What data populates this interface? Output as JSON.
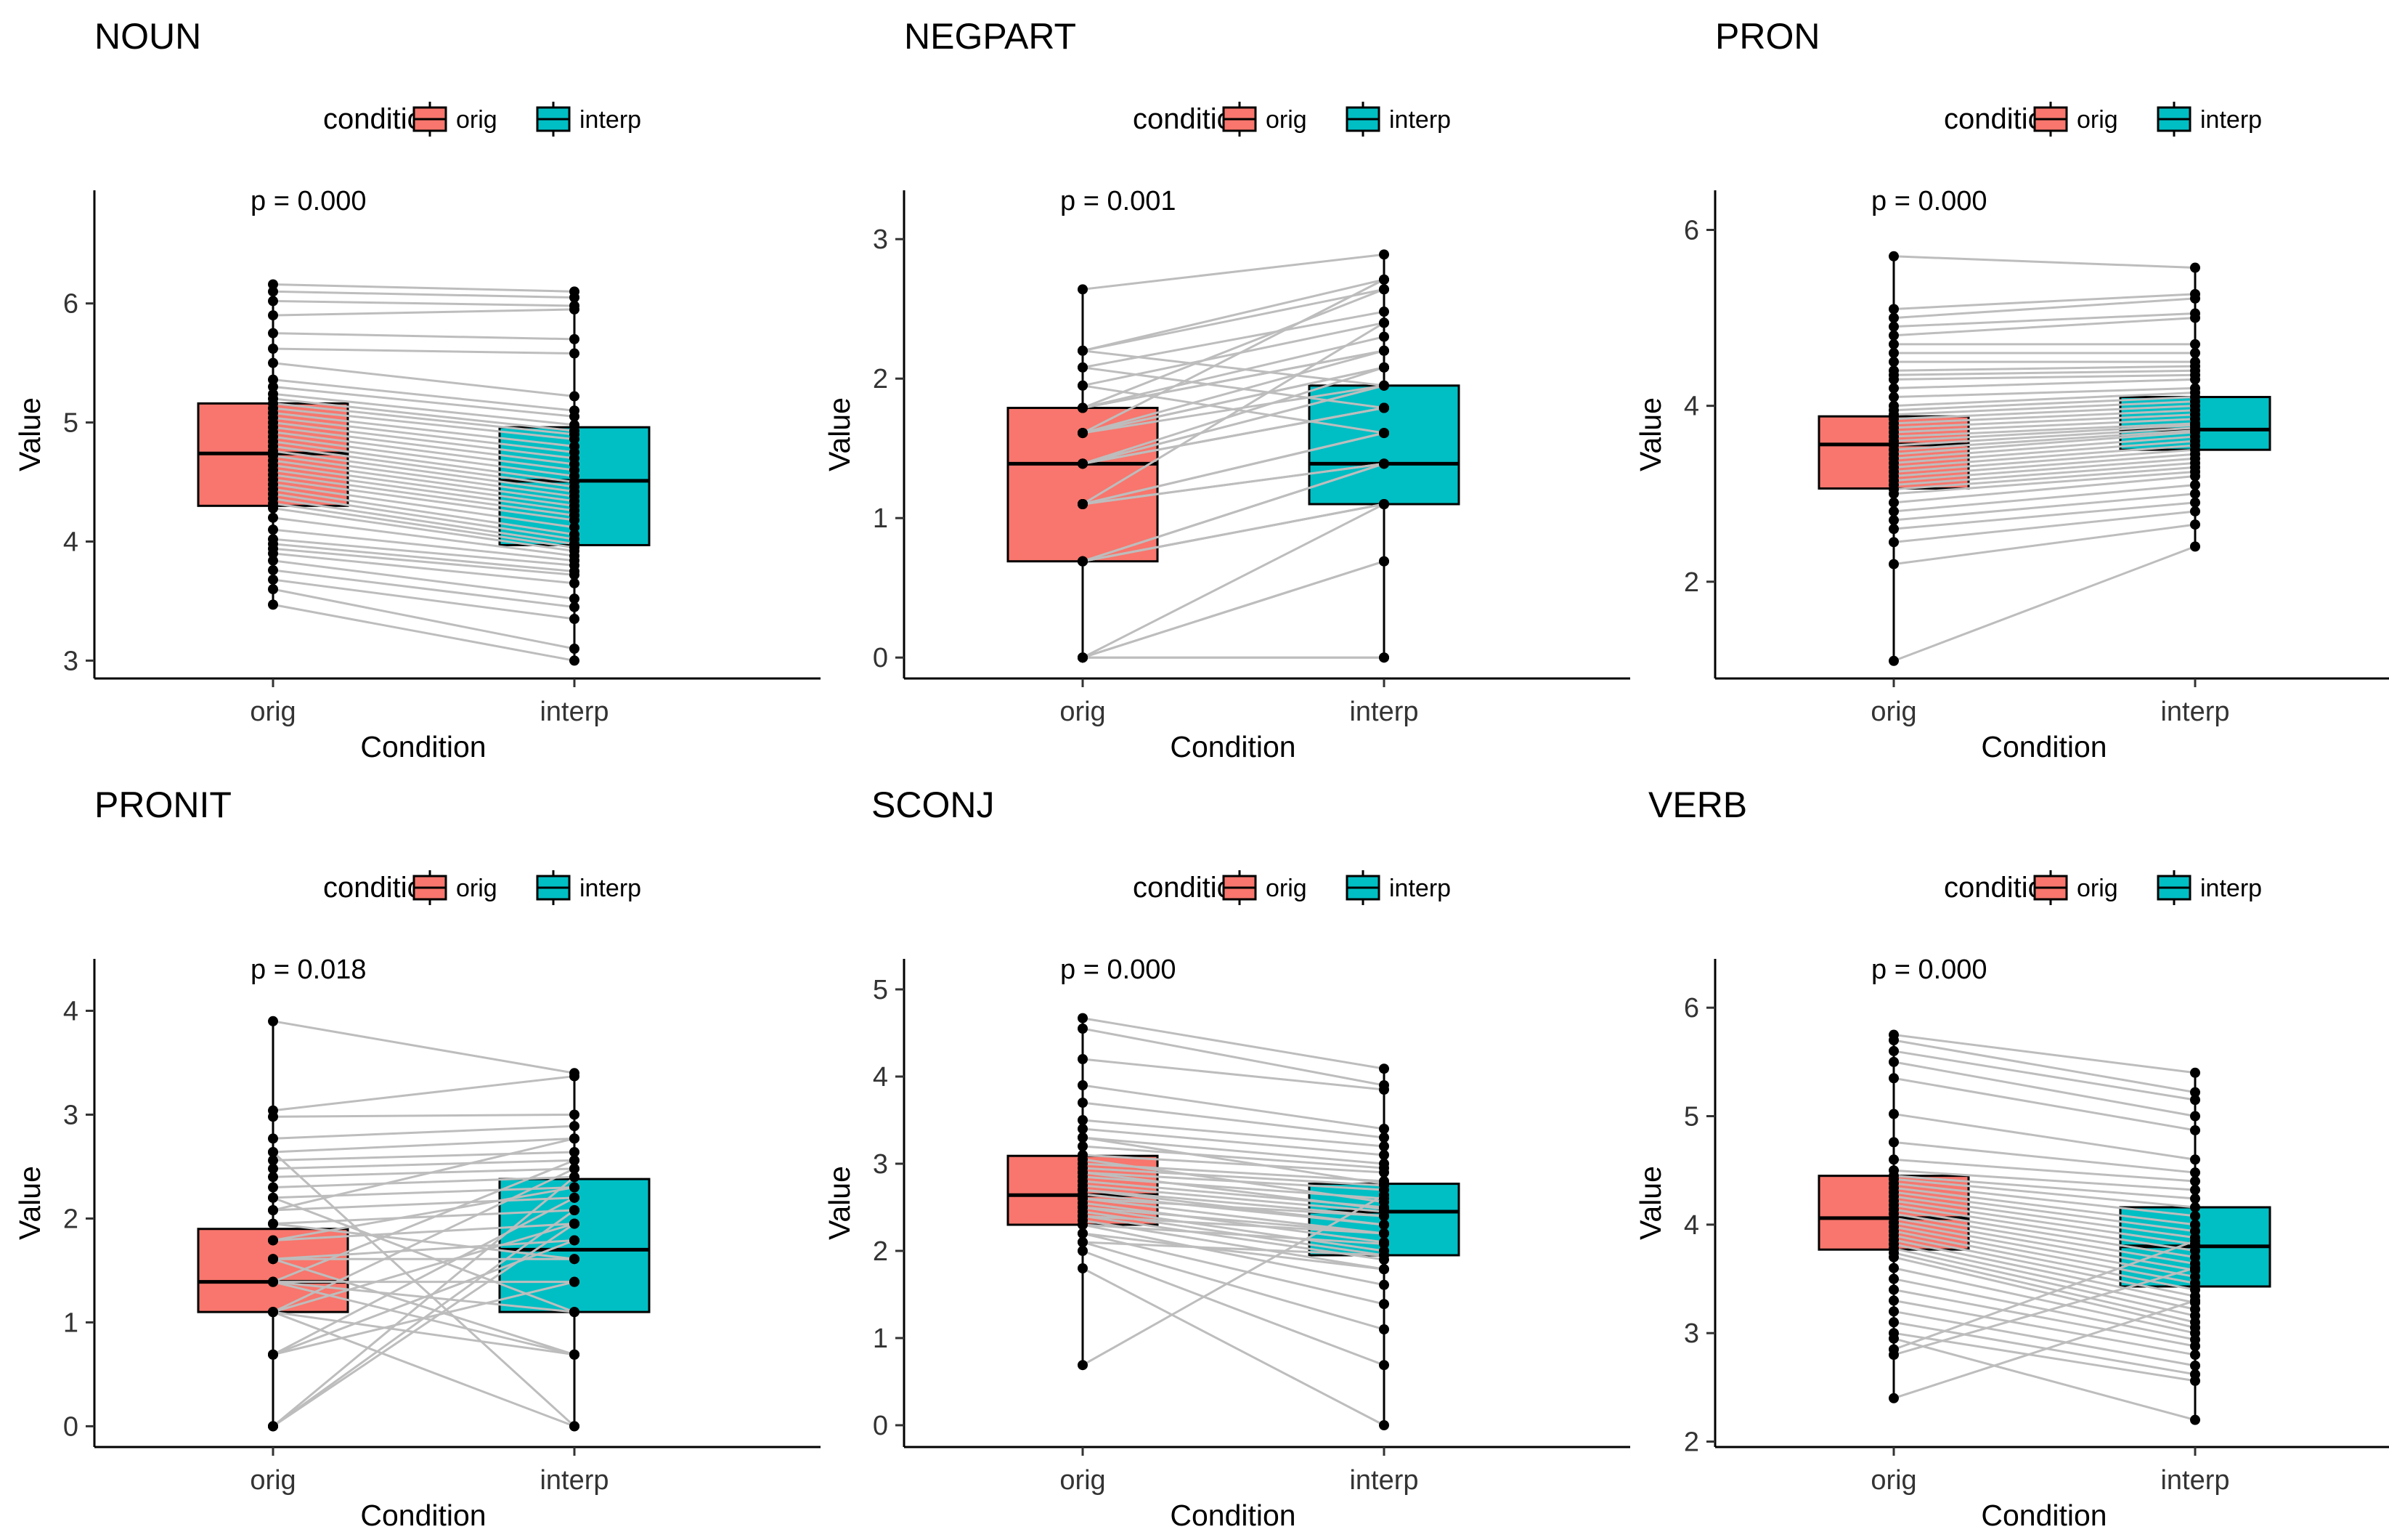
{
  "chart_data": [
    {
      "type": "box",
      "title": "NOUN",
      "xlabel": "Condition",
      "ylabel": "Value",
      "categories": [
        "orig",
        "interp"
      ],
      "legend": {
        "title": "condition",
        "entries": [
          "orig",
          "interp"
        ]
      },
      "annotation": "p = 0.000",
      "ylim": [
        2.85,
        6.95
      ],
      "yticks": [
        3,
        4,
        5,
        6
      ],
      "boxes": [
        {
          "condition": "orig",
          "q1": 4.3,
          "median": 4.74,
          "q3": 5.16,
          "min": 3.47,
          "max": 6.16
        },
        {
          "condition": "interp",
          "q1": 3.97,
          "median": 4.51,
          "q3": 4.96,
          "min": 3.0,
          "max": 6.1
        }
      ],
      "points": {
        "orig": [
          6.16,
          6.1,
          6.02,
          5.9,
          5.75,
          5.62,
          5.5,
          5.36,
          5.3,
          5.24,
          5.2,
          5.16,
          5.12,
          5.08,
          5.04,
          5.0,
          4.96,
          4.92,
          4.88,
          4.84,
          4.8,
          4.76,
          4.72,
          4.68,
          4.64,
          4.6,
          4.56,
          4.52,
          4.48,
          4.44,
          4.4,
          4.36,
          4.32,
          4.28,
          4.2,
          4.1,
          4.02,
          3.98,
          3.94,
          3.9,
          3.84,
          3.76,
          3.68,
          3.6,
          3.47
        ],
        "interp": [
          6.1,
          6.05,
          5.98,
          5.95,
          5.7,
          5.58,
          5.22,
          5.1,
          5.05,
          4.98,
          4.93,
          4.9,
          4.86,
          4.8,
          4.75,
          4.7,
          4.65,
          4.6,
          4.55,
          4.5,
          4.46,
          4.42,
          4.38,
          4.34,
          4.3,
          4.26,
          4.22,
          4.18,
          4.12,
          4.06,
          4.02,
          3.98,
          3.95,
          3.92,
          3.88,
          3.84,
          3.8,
          3.75,
          3.72,
          3.65,
          3.52,
          3.45,
          3.35,
          3.1,
          3.0
        ]
      }
    },
    {
      "type": "box",
      "title": "NEGPART",
      "xlabel": "Condition",
      "ylabel": "Value",
      "categories": [
        "orig",
        "interp"
      ],
      "legend": {
        "title": "condition",
        "entries": [
          "orig",
          "interp"
        ]
      },
      "annotation": "p = 0.001",
      "ylim": [
        -0.15,
        3.35
      ],
      "yticks": [
        0,
        1,
        2,
        3
      ],
      "boxes": [
        {
          "condition": "orig",
          "q1": 0.69,
          "median": 1.39,
          "q3": 1.79,
          "min": 0.0,
          "max": 2.64
        },
        {
          "condition": "interp",
          "q1": 1.1,
          "median": 1.39,
          "q3": 1.95,
          "min": 0.0,
          "max": 2.89
        }
      ],
      "points": {
        "orig": [
          2.64,
          2.2,
          2.2,
          2.08,
          1.95,
          1.79,
          1.79,
          1.61,
          1.61,
          1.61,
          1.39,
          1.39,
          1.39,
          1.39,
          1.39,
          1.1,
          1.1,
          1.1,
          1.1,
          1.1,
          0.69,
          0.69,
          0.69,
          0.69,
          0.69,
          0.0,
          0.0,
          0.0,
          0.0,
          0.0,
          1.61,
          1.79,
          1.95,
          2.08,
          1.1,
          0.69,
          1.39,
          1.61,
          2.2,
          1.79
        ],
        "interp": [
          2.89,
          2.71,
          2.64,
          2.48,
          2.4,
          2.3,
          2.2,
          2.2,
          2.08,
          2.08,
          1.95,
          1.95,
          1.79,
          1.79,
          1.79,
          1.61,
          1.61,
          1.61,
          1.39,
          1.39,
          1.39,
          1.39,
          1.1,
          1.1,
          1.1,
          1.1,
          0.69,
          0.69,
          0.0,
          0.0,
          1.95,
          2.2,
          1.61,
          1.79,
          2.4,
          1.39,
          2.08,
          2.71,
          1.95,
          2.64
        ]
      }
    },
    {
      "type": "box",
      "title": "PRON",
      "xlabel": "Condition",
      "ylabel": "Value",
      "categories": [
        "orig",
        "interp"
      ],
      "legend": {
        "title": "condition",
        "entries": [
          "orig",
          "interp"
        ]
      },
      "annotation": "p = 0.000",
      "ylim": [
        0.9,
        6.45
      ],
      "yticks": [
        2,
        4,
        6
      ],
      "boxes": [
        {
          "condition": "orig",
          "q1": 3.06,
          "median": 3.56,
          "q3": 3.88,
          "min": 1.1,
          "max": 5.7
        },
        {
          "condition": "interp",
          "q1": 3.5,
          "median": 3.73,
          "q3": 4.1,
          "min": 2.4,
          "max": 5.57
        }
      ],
      "points": {
        "orig": [
          5.7,
          5.1,
          5.0,
          4.9,
          4.8,
          4.7,
          4.6,
          4.5,
          4.4,
          4.35,
          4.3,
          4.2,
          4.1,
          4.0,
          3.95,
          3.9,
          3.85,
          3.8,
          3.75,
          3.7,
          3.65,
          3.6,
          3.55,
          3.5,
          3.45,
          3.4,
          3.35,
          3.3,
          3.25,
          3.2,
          3.15,
          3.1,
          3.05,
          3.0,
          2.9,
          2.8,
          2.7,
          2.6,
          2.45,
          2.2,
          1.1
        ],
        "interp": [
          5.57,
          5.27,
          5.22,
          5.05,
          5.0,
          4.7,
          4.6,
          4.5,
          4.45,
          4.4,
          4.35,
          4.3,
          4.2,
          4.15,
          4.1,
          4.05,
          4.0,
          3.95,
          3.9,
          3.85,
          3.8,
          3.78,
          3.75,
          3.72,
          3.7,
          3.65,
          3.6,
          3.55,
          3.5,
          3.45,
          3.4,
          3.35,
          3.3,
          3.25,
          3.2,
          3.1,
          3.0,
          2.9,
          2.8,
          2.65,
          2.4
        ]
      }
    },
    {
      "type": "box",
      "title": "PRONIT",
      "xlabel": "Condition",
      "ylabel": "Value",
      "categories": [
        "orig",
        "interp"
      ],
      "legend": {
        "title": "condition",
        "entries": [
          "orig",
          "interp"
        ]
      },
      "annotation": "p = 0.018",
      "ylim": [
        -0.2,
        4.5
      ],
      "yticks": [
        0,
        1,
        2,
        3,
        4
      ],
      "boxes": [
        {
          "condition": "orig",
          "q1": 1.1,
          "median": 1.39,
          "q3": 1.9,
          "min": 0.0,
          "max": 3.9
        },
        {
          "condition": "interp",
          "q1": 1.1,
          "median": 1.7,
          "q3": 2.38,
          "min": 0.0,
          "max": 3.4
        }
      ],
      "points": {
        "orig": [
          3.9,
          3.04,
          2.98,
          2.77,
          2.64,
          2.56,
          2.48,
          2.4,
          2.3,
          2.2,
          2.08,
          1.95,
          1.79,
          1.61,
          1.61,
          1.39,
          1.39,
          1.39,
          1.1,
          1.1,
          1.1,
          0.69,
          0.69,
          0.0,
          0.0,
          1.79,
          1.95,
          2.2,
          1.39,
          1.1,
          0.69,
          2.64,
          1.61,
          2.08,
          0.0
        ],
        "interp": [
          3.4,
          3.37,
          3.0,
          2.89,
          2.77,
          2.64,
          2.56,
          2.48,
          2.4,
          2.3,
          2.2,
          2.08,
          1.95,
          1.79,
          1.61,
          1.39,
          1.1,
          0.69,
          0.69,
          0.0,
          1.95,
          2.2,
          1.79,
          2.08,
          2.4,
          2.3,
          1.61,
          1.1,
          2.56,
          2.48,
          1.39,
          0.0,
          0.69,
          2.77,
          1.95
        ]
      }
    },
    {
      "type": "box",
      "title": "SCONJ",
      "xlabel": "Condition",
      "ylabel": "Value",
      "categories": [
        "orig",
        "interp"
      ],
      "legend": {
        "title": "condition",
        "entries": [
          "orig",
          "interp"
        ]
      },
      "annotation": "p = 0.000",
      "ylim": [
        -0.25,
        5.35
      ],
      "yticks": [
        0,
        1,
        2,
        3,
        4,
        5
      ],
      "boxes": [
        {
          "condition": "orig",
          "q1": 2.3,
          "median": 2.64,
          "q3": 3.09,
          "min": 0.69,
          "max": 4.67
        },
        {
          "condition": "interp",
          "q1": 1.95,
          "median": 2.45,
          "q3": 2.77,
          "min": 0.0,
          "max": 4.09
        }
      ],
      "points": {
        "orig": [
          4.67,
          4.55,
          4.2,
          3.9,
          3.7,
          3.5,
          3.4,
          3.3,
          3.2,
          3.1,
          3.0,
          2.95,
          2.9,
          2.85,
          2.8,
          2.75,
          2.7,
          2.65,
          2.6,
          2.55,
          2.5,
          2.45,
          2.4,
          2.35,
          2.3,
          2.2,
          2.1,
          2.0,
          1.8,
          0.69,
          3.05,
          2.9,
          2.7,
          2.5,
          2.3,
          2.1,
          3.3,
          2.6,
          2.4,
          2.2
        ],
        "interp": [
          4.09,
          3.9,
          3.85,
          3.4,
          3.3,
          3.2,
          3.1,
          3.0,
          2.95,
          2.9,
          2.8,
          2.75,
          2.7,
          2.6,
          2.5,
          2.45,
          2.4,
          2.3,
          2.2,
          2.1,
          2.0,
          1.95,
          1.9,
          1.79,
          1.61,
          1.39,
          1.1,
          0.69,
          0.0,
          2.64,
          2.56,
          2.48,
          2.3,
          2.2,
          2.08,
          1.95,
          2.77,
          2.4,
          2.2,
          1.79
        ]
      }
    },
    {
      "type": "box",
      "title": "VERB",
      "xlabel": "Condition",
      "ylabel": "Value",
      "categories": [
        "orig",
        "interp"
      ],
      "legend": {
        "title": "condition",
        "entries": [
          "orig",
          "interp"
        ]
      },
      "annotation": "p = 0.000",
      "ylim": [
        1.95,
        6.45
      ],
      "yticks": [
        2,
        3,
        4,
        5,
        6
      ],
      "boxes": [
        {
          "condition": "orig",
          "q1": 3.77,
          "median": 4.06,
          "q3": 4.45,
          "min": 2.4,
          "max": 5.75
        },
        {
          "condition": "interp",
          "q1": 3.43,
          "median": 3.8,
          "q3": 4.16,
          "min": 2.2,
          "max": 5.4
        }
      ],
      "points": {
        "orig": [
          5.75,
          5.7,
          5.6,
          5.5,
          5.35,
          5.02,
          4.76,
          4.6,
          4.5,
          4.45,
          4.42,
          4.38,
          4.34,
          4.3,
          4.26,
          4.22,
          4.18,
          4.14,
          4.1,
          4.06,
          4.02,
          3.98,
          3.94,
          3.9,
          3.86,
          3.82,
          3.78,
          3.74,
          3.7,
          3.6,
          3.5,
          3.4,
          3.3,
          3.2,
          3.1,
          3.0,
          2.95,
          2.85,
          2.8,
          2.4
        ],
        "interp": [
          5.4,
          5.22,
          5.15,
          5.0,
          4.87,
          4.6,
          4.48,
          4.4,
          4.32,
          4.24,
          4.16,
          4.08,
          4.0,
          3.94,
          3.88,
          3.82,
          3.76,
          3.7,
          3.64,
          3.58,
          3.52,
          3.46,
          3.4,
          3.34,
          3.28,
          3.22,
          3.16,
          3.1,
          3.05,
          3.0,
          2.94,
          2.88,
          2.8,
          2.7,
          2.62,
          2.56,
          2.2,
          3.85,
          3.6,
          3.3
        ]
      }
    }
  ]
}
